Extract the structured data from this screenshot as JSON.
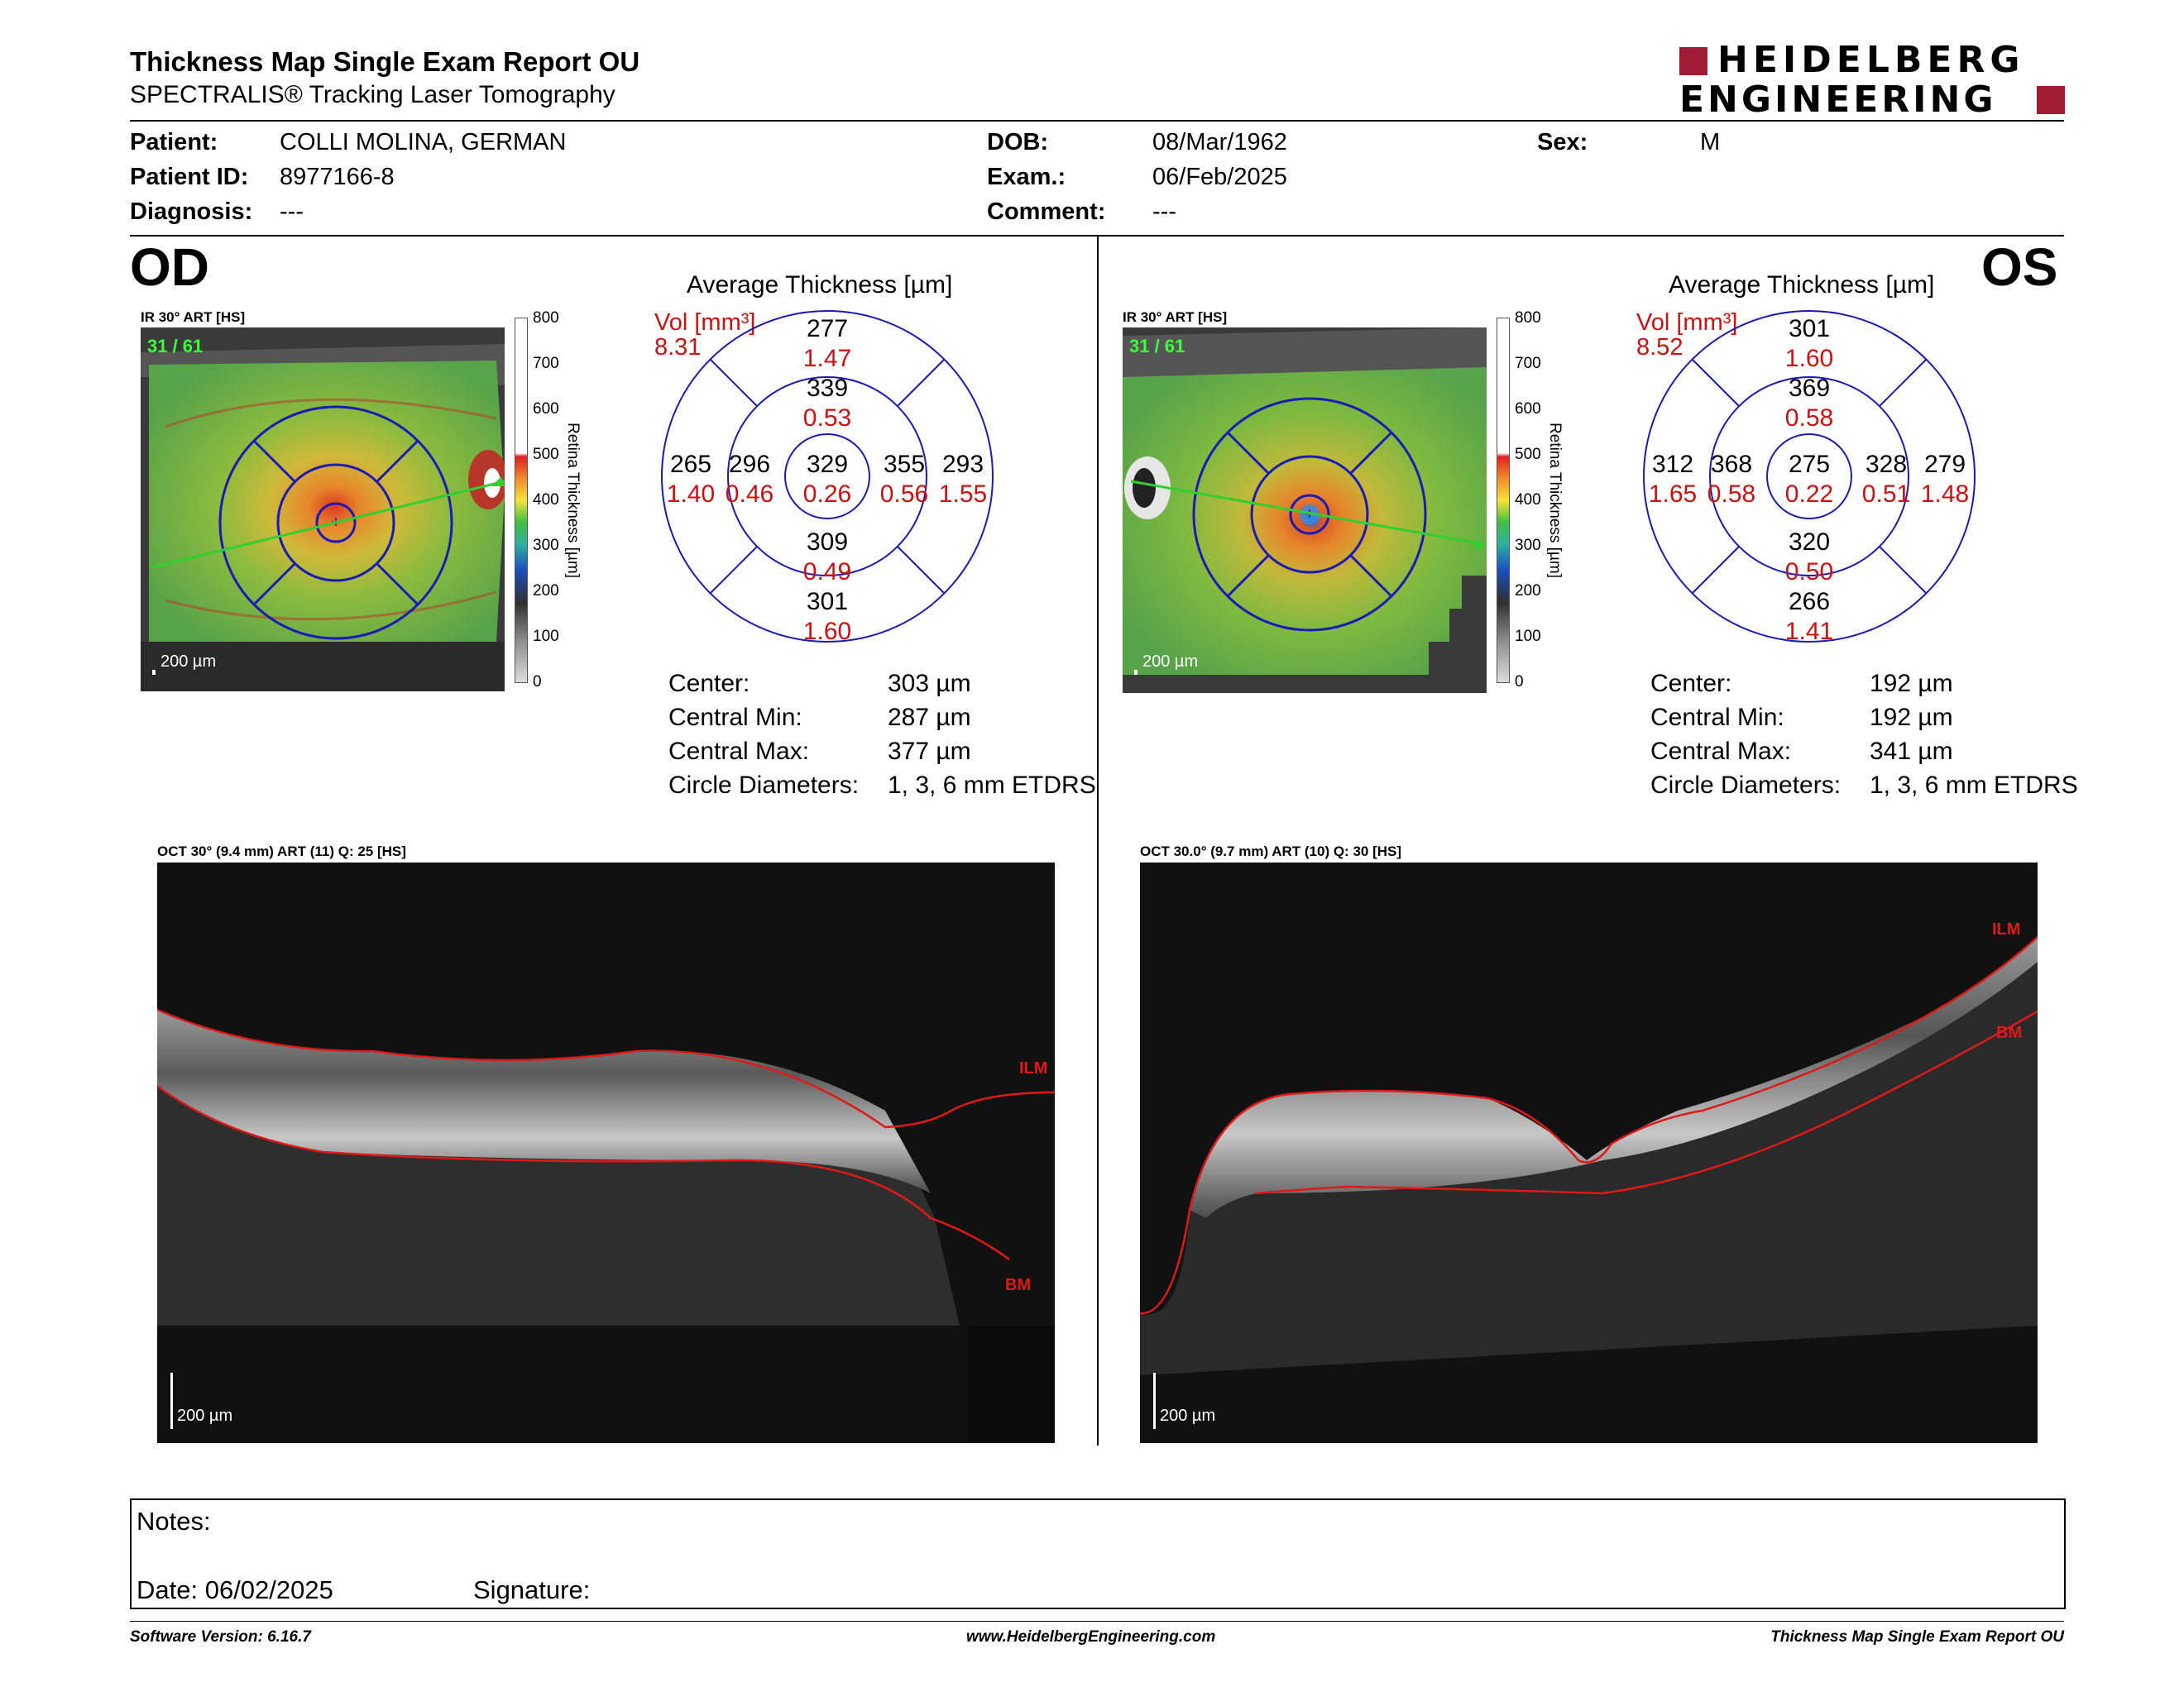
{
  "header": {
    "title": "Thickness Map Single Exam Report OU",
    "subtitle": "SPECTRALIS® Tracking Laser Tomography",
    "logo_line1": "HEIDELBERG",
    "logo_line2": "ENGINEERING",
    "brand_color": "#9e1b32"
  },
  "patient": {
    "patient_label": "Patient:",
    "patient_value": "COLLI MOLINA, GERMAN",
    "id_label": "Patient ID:",
    "id_value": "8977166-8",
    "diag_label": "Diagnosis:",
    "diag_value": "---",
    "dob_label": "DOB:",
    "dob_value": "08/Mar/1962",
    "exam_label": "Exam.:",
    "exam_value": "06/Feb/2025",
    "comment_label": "Comment:",
    "comment_value": "---",
    "sex_label": "Sex:",
    "sex_value": "M"
  },
  "od": {
    "eye": "OD",
    "ir_label": "IR 30° ART [HS]",
    "frame_count": "31 / 61",
    "scale": "200 µm",
    "scale_axis": {
      "ticks": [
        "800",
        "700",
        "600",
        "500",
        "400",
        "300",
        "200",
        "100",
        "0"
      ],
      "title": "Retina Thickness [µm]"
    },
    "avg_title": "Average Thickness [µm]",
    "vol_label": "Vol [mm³]",
    "vol_value": "8.31",
    "sectors": {
      "outer_sup": {
        "t": "277",
        "v": "1.47"
      },
      "inner_sup": {
        "t": "339",
        "v": "0.53"
      },
      "outer_temp": {
        "t": "265",
        "v": "1.40"
      },
      "inner_temp": {
        "t": "296",
        "v": "0.46"
      },
      "center": {
        "t": "329",
        "v": "0.26"
      },
      "inner_nas": {
        "t": "355",
        "v": "0.56"
      },
      "outer_nas": {
        "t": "293",
        "v": "1.55"
      },
      "inner_inf": {
        "t": "309",
        "v": "0.49"
      },
      "outer_inf": {
        "t": "301",
        "v": "1.60"
      }
    },
    "stats": {
      "center_label": "Center:",
      "center_value": "303 µm",
      "min_label": "Central Min:",
      "min_value": "287 µm",
      "max_label": "Central Max:",
      "max_value": "377 µm",
      "diam_label": "Circle Diameters:",
      "diam_value": "1, 3, 6 mm ETDRS"
    },
    "oct_label": "OCT 30° (9.4 mm) ART (11) Q: 25 [HS]",
    "oct_scale": "200 µm",
    "ilm": "ILM",
    "bm": "BM"
  },
  "os": {
    "eye": "OS",
    "ir_label": "IR 30° ART [HS]",
    "frame_count": "31 / 61",
    "scale": "200 µm",
    "scale_axis": {
      "ticks": [
        "800",
        "700",
        "600",
        "500",
        "400",
        "300",
        "200",
        "100",
        "0"
      ],
      "title": "Retina Thickness [µm]"
    },
    "avg_title": "Average Thickness [µm]",
    "vol_label": "Vol [mm³]",
    "vol_value": "8.52",
    "sectors": {
      "outer_sup": {
        "t": "301",
        "v": "1.60"
      },
      "inner_sup": {
        "t": "369",
        "v": "0.58"
      },
      "outer_temp": {
        "t": "312",
        "v": "1.65"
      },
      "inner_temp": {
        "t": "368",
        "v": "0.58"
      },
      "center": {
        "t": "275",
        "v": "0.22"
      },
      "inner_nas": {
        "t": "328",
        "v": "0.51"
      },
      "outer_nas": {
        "t": "279",
        "v": "1.48"
      },
      "inner_inf": {
        "t": "320",
        "v": "0.50"
      },
      "outer_inf": {
        "t": "266",
        "v": "1.41"
      }
    },
    "stats": {
      "center_label": "Center:",
      "center_value": "192 µm",
      "min_label": "Central Min:",
      "min_value": "192 µm",
      "max_label": "Central Max:",
      "max_value": "341 µm",
      "diam_label": "Circle Diameters:",
      "diam_value": "1, 3, 6 mm ETDRS"
    },
    "oct_label": "OCT 30.0° (9.7 mm) ART (10) Q: 30 [HS]",
    "oct_scale": "200 µm",
    "ilm": "ILM",
    "bm": "BM"
  },
  "notes": {
    "notes_label": "Notes:",
    "date_label": "Date: 06/02/2025",
    "signature_label": "Signature:"
  },
  "footer": {
    "software": "Software Version: 6.16.7",
    "url": "www.HeidelbergEngineering.com",
    "report": "Thickness Map Single Exam Report OU"
  }
}
